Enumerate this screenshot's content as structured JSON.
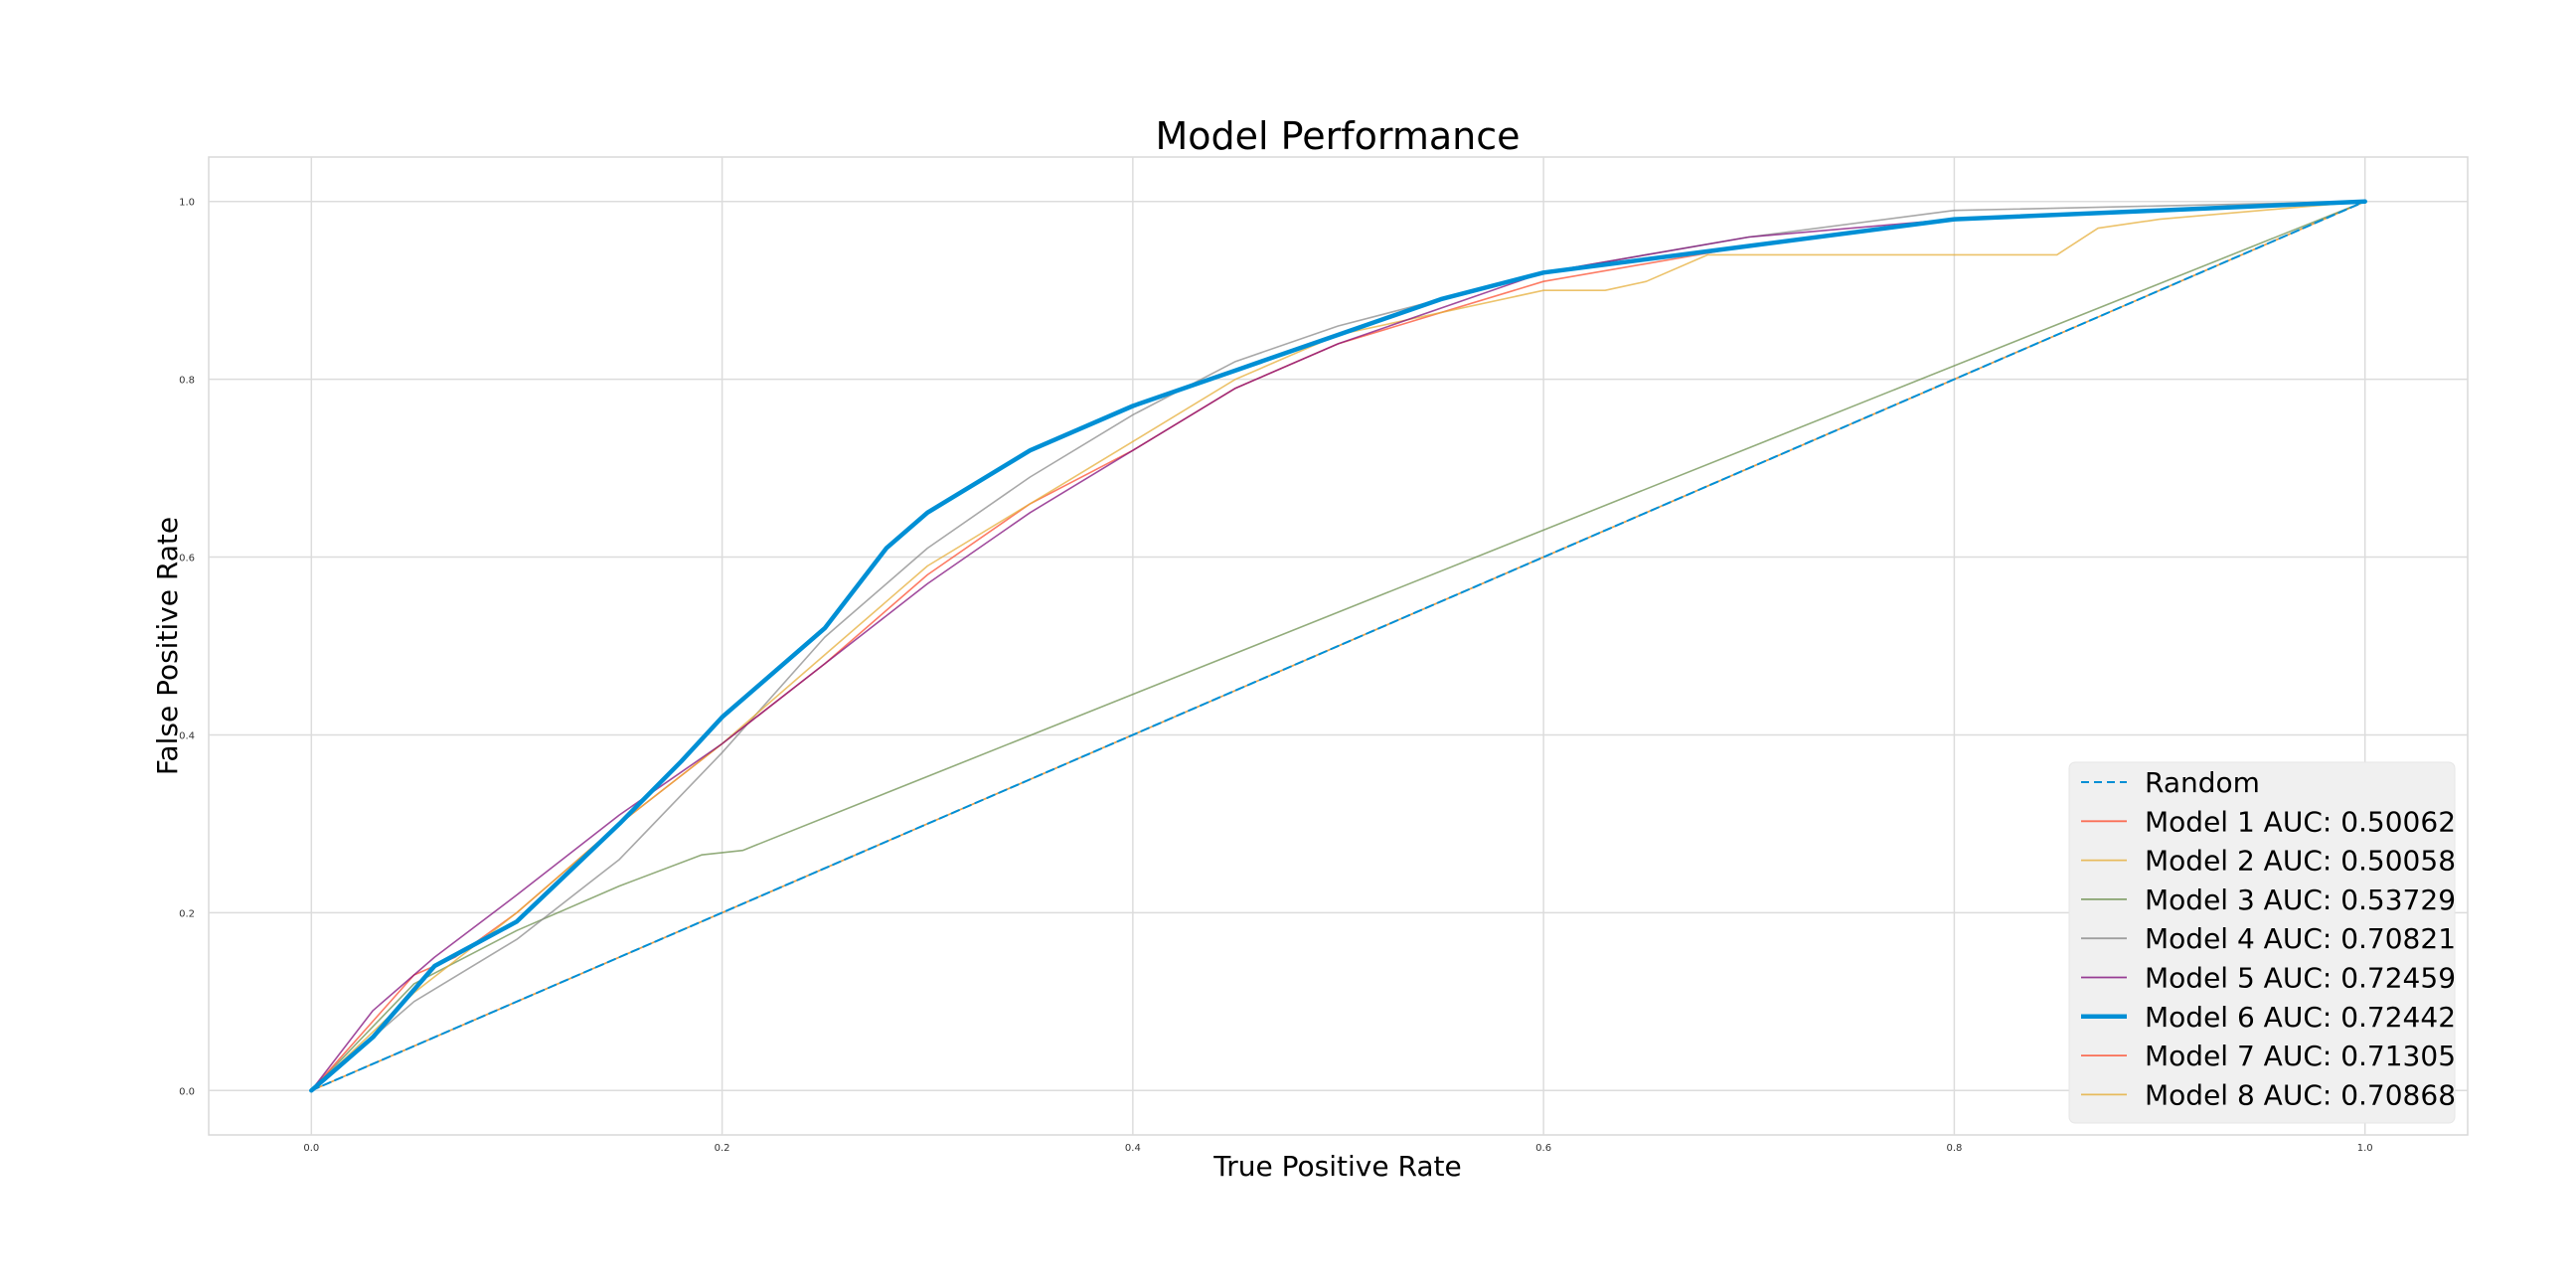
{
  "chart_data": {
    "type": "line",
    "title": "Model Performance",
    "xlabel": "True Positive Rate",
    "ylabel": "False Positive Rate",
    "xlim": [
      -0.05,
      1.05
    ],
    "ylim": [
      -0.05,
      1.05
    ],
    "xticks": [
      0.0,
      0.2,
      0.4,
      0.6,
      0.8,
      1.0
    ],
    "yticks": [
      0.0,
      0.2,
      0.4,
      0.6,
      0.8,
      1.0
    ],
    "xtick_labels": [
      "0.0",
      "0.2",
      "0.4",
      "0.6",
      "0.8",
      "1.0"
    ],
    "ytick_labels": [
      "0.0",
      "0.2",
      "0.4",
      "0.6",
      "0.8",
      "1.0"
    ],
    "grid": true,
    "legend_position": "bottom-right",
    "series": [
      {
        "name": "Random",
        "color": "#008fd5",
        "style": "dashed",
        "x": [
          0,
          1
        ],
        "y": [
          0,
          1
        ]
      },
      {
        "name": "Model 1 AUC: 0.50062",
        "color": "#fc4f30",
        "style": "solid",
        "x": [
          0,
          1
        ],
        "y": [
          0,
          1
        ]
      },
      {
        "name": "Model 2 AUC: 0.50058",
        "color": "#e5ae38",
        "style": "solid",
        "x": [
          0,
          1
        ],
        "y": [
          0,
          1
        ]
      },
      {
        "name": "Model 3 AUC: 0.53729",
        "color": "#6d904f",
        "style": "solid",
        "x": [
          0,
          0.05,
          0.1,
          0.15,
          0.19,
          0.21,
          1.0
        ],
        "y": [
          0,
          0.12,
          0.18,
          0.23,
          0.265,
          0.27,
          1.0
        ]
      },
      {
        "name": "Model 4 AUC: 0.70821",
        "color": "#8b8b8b",
        "style": "solid",
        "x": [
          0,
          0.05,
          0.1,
          0.15,
          0.2,
          0.25,
          0.3,
          0.35,
          0.4,
          0.45,
          0.5,
          0.6,
          0.7,
          0.8,
          0.9,
          1.0
        ],
        "y": [
          0,
          0.1,
          0.17,
          0.26,
          0.38,
          0.51,
          0.61,
          0.69,
          0.76,
          0.82,
          0.86,
          0.92,
          0.96,
          0.99,
          0.995,
          1.0
        ]
      },
      {
        "name": "Model 5 AUC: 0.72459",
        "color": "#810f7c",
        "style": "solid",
        "x": [
          0,
          0.03,
          0.06,
          0.1,
          0.15,
          0.2,
          0.25,
          0.3,
          0.35,
          0.4,
          0.45,
          0.5,
          0.6,
          0.7,
          0.8,
          0.9,
          1.0
        ],
        "y": [
          0,
          0.09,
          0.15,
          0.22,
          0.31,
          0.39,
          0.48,
          0.57,
          0.65,
          0.72,
          0.79,
          0.84,
          0.92,
          0.96,
          0.98,
          0.99,
          1.0
        ]
      },
      {
        "name": "Model 6 AUC: 0.72442",
        "color": "#008fd5",
        "style": "bold",
        "x": [
          0,
          0.03,
          0.06,
          0.1,
          0.15,
          0.18,
          0.2,
          0.25,
          0.28,
          0.3,
          0.35,
          0.4,
          0.45,
          0.5,
          0.55,
          0.6,
          0.7,
          0.8,
          0.9,
          1.0
        ],
        "y": [
          0,
          0.06,
          0.14,
          0.19,
          0.3,
          0.37,
          0.42,
          0.52,
          0.61,
          0.65,
          0.72,
          0.77,
          0.81,
          0.85,
          0.89,
          0.92,
          0.95,
          0.98,
          0.99,
          1.0
        ]
      },
      {
        "name": "Model 7 AUC: 0.71305",
        "color": "#fc4f30",
        "style": "solid",
        "x": [
          0,
          0.05,
          0.07,
          0.1,
          0.15,
          0.2,
          0.25,
          0.3,
          0.35,
          0.4,
          0.45,
          0.5,
          0.6,
          0.7,
          0.8,
          0.9,
          1.0
        ],
        "y": [
          0,
          0.13,
          0.15,
          0.2,
          0.3,
          0.39,
          0.48,
          0.58,
          0.66,
          0.72,
          0.79,
          0.84,
          0.91,
          0.95,
          0.98,
          0.99,
          1.0
        ]
      },
      {
        "name": "Model 8 AUC: 0.70868",
        "color": "#e5ae38",
        "style": "solid",
        "x": [
          0,
          0.05,
          0.1,
          0.15,
          0.2,
          0.25,
          0.3,
          0.35,
          0.4,
          0.45,
          0.5,
          0.6,
          0.63,
          0.65,
          0.68,
          0.7,
          0.85,
          0.87,
          0.9,
          1.0
        ],
        "y": [
          0,
          0.11,
          0.2,
          0.3,
          0.39,
          0.49,
          0.59,
          0.66,
          0.73,
          0.8,
          0.85,
          0.9,
          0.9,
          0.91,
          0.94,
          0.94,
          0.94,
          0.97,
          0.98,
          1.0
        ]
      }
    ]
  }
}
